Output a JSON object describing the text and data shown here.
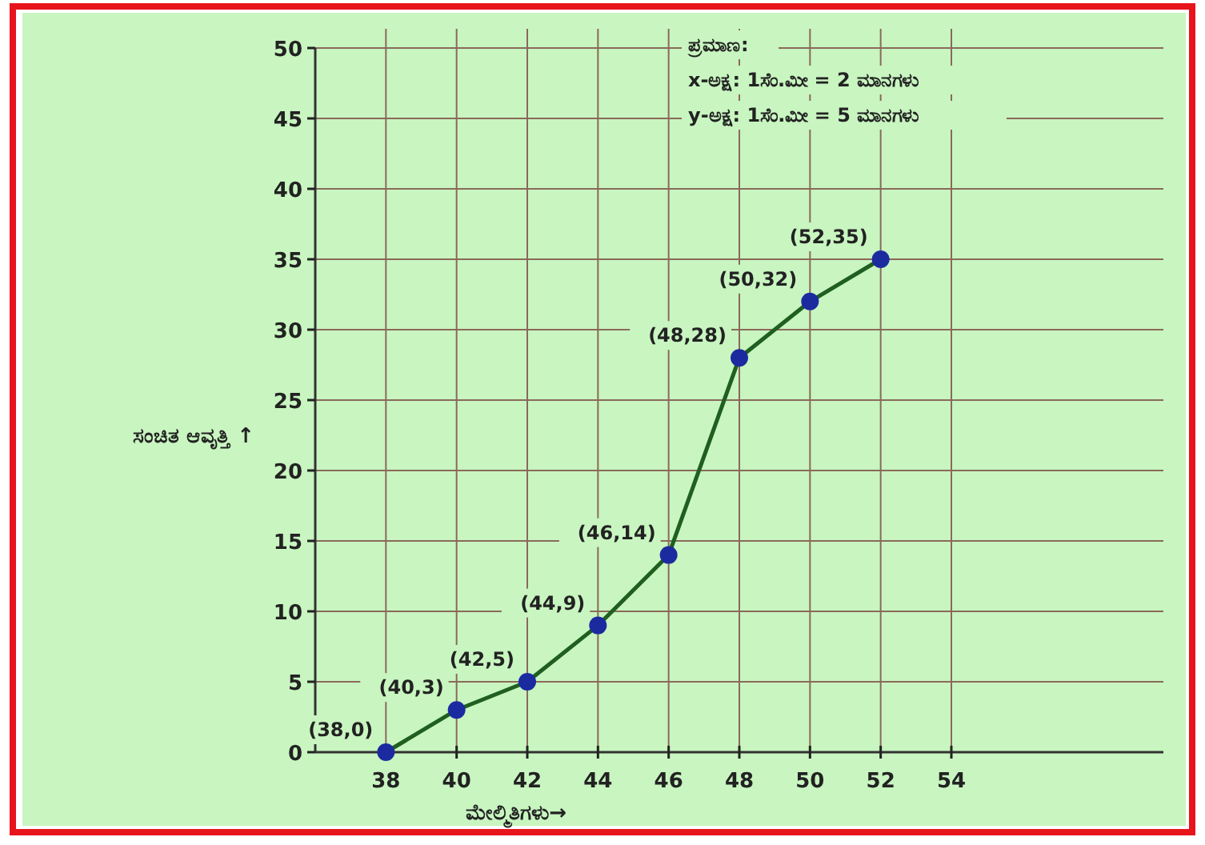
{
  "chart_data": {
    "type": "line",
    "xlabel": "ಮೇಲ್ಮಿತಿಗಳು→",
    "ylabel": "ಸಂಚಿತ ಆವೃತ್ತಿ ↑",
    "annotations": [
      "ಪ್ರಮಾಣ:",
      "x-ಅಕ್ಷ: 1ಸೆಂ.ಮೀ = 2 ಮಾನಗಳು",
      "y-ಅಕ್ಷ: 1ಸೆಂ.ಮೀ = 5 ಮಾನಗಳು",
      {
        "text": "(38,0)",
        "x": 38,
        "y": 0
      },
      {
        "text": "(40,3)",
        "x": 40,
        "y": 3
      },
      {
        "text": "(42,5)",
        "x": 42,
        "y": 5
      },
      {
        "text": "(44,9)",
        "x": 44,
        "y": 9
      },
      {
        "text": "(46,14)",
        "x": 46,
        "y": 14
      },
      {
        "text": "(48,28)",
        "x": 48,
        "y": 28
      },
      {
        "text": "(50,32)",
        "x": 50,
        "y": 32
      },
      {
        "text": "(52,35)",
        "x": 52,
        "y": 35
      }
    ],
    "x": [
      38,
      40,
      42,
      44,
      46,
      48,
      50,
      52
    ],
    "series": [
      {
        "color": "#1f5f1f",
        "values": [
          0,
          3,
          5,
          9,
          14,
          28,
          32,
          35
        ]
      }
    ],
    "xlim": [
      36,
      60
    ],
    "ylim": [
      0,
      50
    ],
    "xticks": [
      38,
      40,
      42,
      44,
      46,
      48,
      50,
      52,
      54
    ],
    "yticks": [
      0,
      5,
      10,
      15,
      20,
      25,
      30,
      35,
      40,
      45,
      50
    ],
    "grid": true,
    "marker": "circle",
    "line_style": "solid"
  }
}
